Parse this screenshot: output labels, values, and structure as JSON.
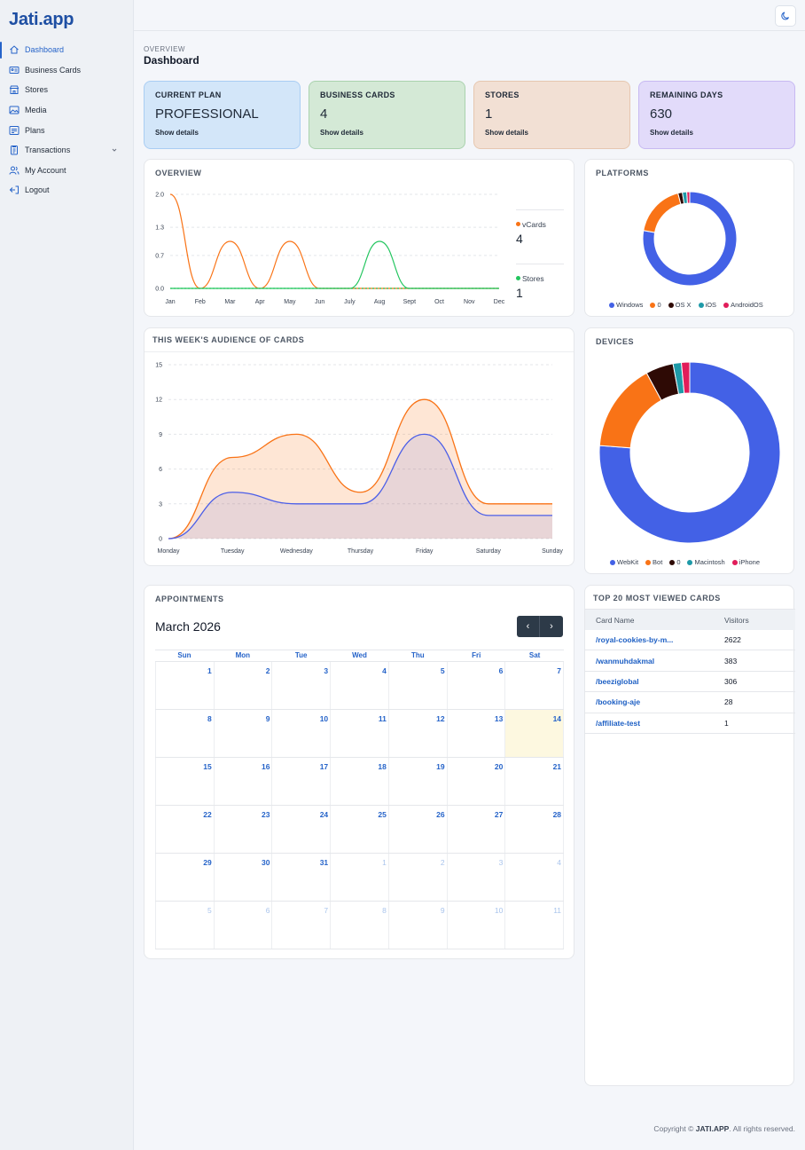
{
  "app": {
    "logo": "Jati.app"
  },
  "sidebar": {
    "items": [
      {
        "label": "Dashboard",
        "icon": "home-icon"
      },
      {
        "label": "Business Cards",
        "icon": "id-card-icon"
      },
      {
        "label": "Stores",
        "icon": "store-icon"
      },
      {
        "label": "Media",
        "icon": "image-icon"
      },
      {
        "label": "Plans",
        "icon": "plans-icon"
      },
      {
        "label": "Transactions",
        "icon": "receipt-icon"
      },
      {
        "label": "My Account",
        "icon": "users-icon"
      },
      {
        "label": "Logout",
        "icon": "logout-icon"
      }
    ]
  },
  "header": {
    "theme_icon": "moon-icon"
  },
  "breadcrumb": "OVERVIEW",
  "page_title": "Dashboard",
  "stats": [
    {
      "label": "CURRENT PLAN",
      "value": "PROFESSIONAL",
      "link": "Show details",
      "bg": "#d3e6f9",
      "border": "#a9cdf3"
    },
    {
      "label": "BUSINESS CARDS",
      "value": "4",
      "link": "Show details",
      "bg": "#d4e9d6",
      "border": "#aad2ae"
    },
    {
      "label": "STORES",
      "value": "1",
      "link": "Show details",
      "bg": "#f2e0d4",
      "border": "#e6c7b0"
    },
    {
      "label": "REMAINING DAYS",
      "value": "630",
      "link": "Show details",
      "bg": "#e2dbfa",
      "border": "#c7b9f2"
    }
  ],
  "overview": {
    "title": "OVERVIEW",
    "legend": [
      {
        "name": "vCards",
        "value": "4",
        "color": "#f97316"
      },
      {
        "name": "Stores",
        "value": "1",
        "color": "#22c55e"
      }
    ]
  },
  "platforms": {
    "title": "PLATFORMS"
  },
  "audience": {
    "title": "THIS WEEK'S AUDIENCE OF CARDS"
  },
  "devices": {
    "title": "DEVICES"
  },
  "appointments": {
    "title": "APPOINTMENTS",
    "month": "March 2026",
    "prev": "‹",
    "next": "›",
    "weekdays": [
      "Sun",
      "Mon",
      "Tue",
      "Wed",
      "Thu",
      "Fri",
      "Sat"
    ],
    "weeks": [
      [
        "1",
        "2",
        "3",
        "4",
        "5",
        "6",
        "7"
      ],
      [
        "8",
        "9",
        "10",
        "11",
        "12",
        "13",
        "14"
      ],
      [
        "15",
        "16",
        "17",
        "18",
        "19",
        "20",
        "21"
      ],
      [
        "22",
        "23",
        "24",
        "25",
        "26",
        "27",
        "28"
      ],
      [
        "29",
        "30",
        "31",
        "1",
        "2",
        "3",
        "4"
      ],
      [
        "5",
        "6",
        "7",
        "8",
        "9",
        "10",
        "11"
      ]
    ],
    "today": "14"
  },
  "top_cards": {
    "title": "TOP 20 MOST VIEWED CARDS",
    "columns": [
      "Card Name",
      "Visitors"
    ],
    "rows": [
      [
        "/royal-cookies-by-m...",
        "2622"
      ],
      [
        "/wanmuhdakmal",
        "383"
      ],
      [
        "/beeziglobal",
        "306"
      ],
      [
        "/booking-aje",
        "28"
      ],
      [
        "/affiliate-test",
        "1"
      ]
    ]
  },
  "footer": {
    "prefix": "Copyright © ",
    "brand": "JATI.APP",
    "suffix": ". All rights reserved."
  },
  "chart_data": [
    {
      "type": "line",
      "name": "overview",
      "categories": [
        "Jan",
        "Feb",
        "Mar",
        "Apr",
        "May",
        "Jun",
        "July",
        "Aug",
        "Sept",
        "Oct",
        "Nov",
        "Dec"
      ],
      "yticks": [
        "0.0",
        "0.7",
        "1.3",
        "2.0"
      ],
      "ylim": [
        0,
        2
      ],
      "series": [
        {
          "name": "vCards",
          "color": "#f97316",
          "values": [
            2,
            0,
            1,
            0,
            1,
            0,
            0,
            0,
            0,
            0,
            0,
            0
          ]
        },
        {
          "name": "Stores",
          "color": "#22c55e",
          "values": [
            0,
            0,
            0,
            0,
            0,
            0,
            0,
            1,
            0,
            0,
            0,
            0
          ]
        }
      ],
      "grid": true
    },
    {
      "type": "pie",
      "name": "platforms",
      "labels": [
        "Windows",
        "0",
        "OS X",
        "iOS",
        "AndroidOS"
      ],
      "values": [
        77,
        18,
        1.5,
        1.5,
        1
      ],
      "colors": [
        "#4361e6",
        "#f97316",
        "#2e0a05",
        "#1e9aa8",
        "#e11d5a"
      ],
      "legend": "bottom"
    },
    {
      "type": "area",
      "name": "audience",
      "categories": [
        "Monday",
        "Tuesday",
        "Wednesday",
        "Thursday",
        "Friday",
        "Saturday",
        "Sunday"
      ],
      "yticks": [
        "0",
        "3",
        "6",
        "9",
        "12",
        "15"
      ],
      "ylim": [
        0,
        15
      ],
      "series": [
        {
          "color": "#f97316",
          "values": [
            0,
            7,
            9,
            4,
            12,
            3,
            3
          ]
        },
        {
          "color": "#4b5ee8",
          "values": [
            0,
            4,
            3,
            3,
            9,
            2,
            2
          ]
        }
      ],
      "grid": true
    },
    {
      "type": "pie",
      "name": "devices",
      "labels": [
        "WebKit",
        "Bot",
        "0",
        "Macintosh",
        "iPhone"
      ],
      "values": [
        77,
        16,
        5,
        1.5,
        1.5
      ],
      "colors": [
        "#4361e6",
        "#f97316",
        "#2e0a05",
        "#1e9aa8",
        "#e11d5a"
      ],
      "legend": "bottom"
    }
  ]
}
